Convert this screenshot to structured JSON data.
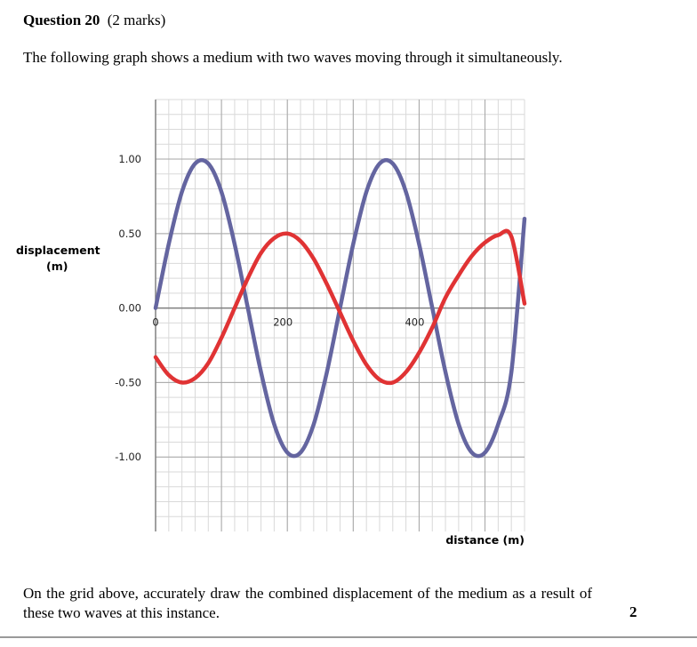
{
  "question": {
    "number": "Question 20",
    "marks": "(2 marks)",
    "intro": "The following graph shows a medium with two waves moving through it simultaneously.",
    "instruction": "On the grid above, accurately draw the combined displacement of the medium as a result of these two waves at this instance.",
    "marks_value": "2"
  },
  "chart_data": {
    "type": "line",
    "ylabel_line1": "displacement",
    "ylabel_line2": "(m)",
    "xlabel": "distance (m)",
    "x_ticks": [
      "0",
      "200",
      "400"
    ],
    "x_tick_values": [
      0,
      200,
      400
    ],
    "y_ticks": [
      "1.00",
      "0.50",
      "0.00",
      "-0.50",
      "-1.00"
    ],
    "y_tick_values": [
      1,
      0.5,
      0,
      -0.5,
      -1
    ],
    "xlim": [
      0,
      560
    ],
    "ylim": [
      -1.5,
      1.4
    ],
    "grid": true,
    "series": [
      {
        "color": "#6465a0",
        "x": [
          0,
          20,
          40,
          60,
          80,
          100,
          120,
          140,
          160,
          180,
          200,
          220,
          240,
          260,
          280,
          300,
          320,
          340,
          360,
          380,
          400,
          420,
          440,
          460,
          480,
          500,
          520,
          540,
          560
        ],
        "y": [
          0,
          0.43,
          0.78,
          0.97,
          0.97,
          0.78,
          0.43,
          0,
          -0.43,
          -0.78,
          -0.97,
          -0.97,
          -0.78,
          -0.43,
          0,
          0.43,
          0.78,
          0.97,
          0.97,
          0.78,
          0.43,
          0,
          -0.43,
          -0.78,
          -0.97,
          -0.97,
          -0.78,
          -0.43,
          0.6
        ]
      },
      {
        "color": "#e03334",
        "x": [
          0,
          20,
          40,
          60,
          80,
          100,
          120,
          140,
          160,
          180,
          200,
          220,
          240,
          260,
          280,
          300,
          320,
          340,
          360,
          380,
          400,
          420,
          440,
          460,
          480,
          500,
          520,
          540,
          560
        ],
        "y": [
          -0.33,
          -0.45,
          -0.5,
          -0.47,
          -0.37,
          -0.2,
          0,
          0.2,
          0.37,
          0.47,
          0.5,
          0.45,
          0.33,
          0.16,
          -0.03,
          -0.22,
          -0.38,
          -0.48,
          -0.5,
          -0.43,
          -0.3,
          -0.13,
          0.07,
          0.22,
          0.35,
          0.44,
          0.49,
          0.48,
          0.03
        ]
      }
    ]
  }
}
